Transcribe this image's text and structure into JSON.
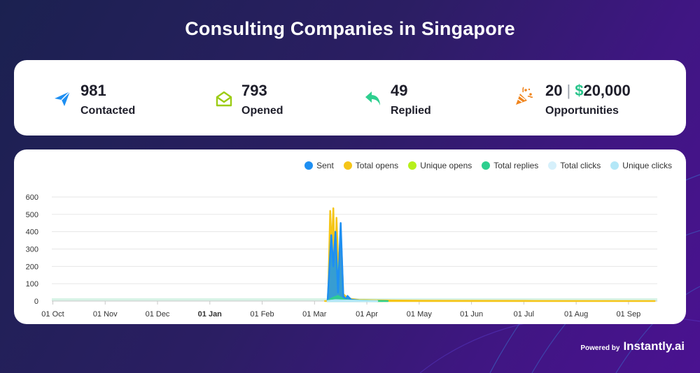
{
  "page": {
    "title": "Consulting Companies in Singapore"
  },
  "stats": [
    {
      "icon": "paper-plane-icon",
      "value": "981",
      "label": "Contacted",
      "color": "#1e8ff2"
    },
    {
      "icon": "envelope-open-icon",
      "value": "793",
      "label": "Opened",
      "color": "#9ccc15"
    },
    {
      "icon": "reply-arrow-icon",
      "value": "49",
      "label": "Replied",
      "color": "#2ecf8f"
    },
    {
      "icon": "party-popper-icon",
      "value": "20",
      "value_sep": "|",
      "value_currency": "$",
      "value_amount": "20,000",
      "label": "Opportunities",
      "color": "#f0851e"
    }
  ],
  "legend": [
    {
      "label": "Sent",
      "color": "#1e8ff2"
    },
    {
      "label": "Total opens",
      "color": "#f5c518"
    },
    {
      "label": "Unique opens",
      "color": "#b6f01a"
    },
    {
      "label": "Total replies",
      "color": "#2ecf8f"
    },
    {
      "label": "Total clicks",
      "color": "#d6f0fb"
    },
    {
      "label": "Unique clicks",
      "color": "#b3e7f7"
    }
  ],
  "chart_data": {
    "type": "area",
    "title": "",
    "xlabel": "",
    "ylabel": "",
    "ylim": [
      0,
      600
    ],
    "yticks": [
      0,
      100,
      200,
      300,
      400,
      500,
      600
    ],
    "xlim": [
      -0.02,
      11.55
    ],
    "x_ticks": [
      {
        "x": 0,
        "label": "01 Oct",
        "bold": false
      },
      {
        "x": 1,
        "label": "01 Nov",
        "bold": false
      },
      {
        "x": 2,
        "label": "01 Dec",
        "bold": false
      },
      {
        "x": 3,
        "label": "01 Jan",
        "bold": true
      },
      {
        "x": 4,
        "label": "01 Feb",
        "bold": false
      },
      {
        "x": 5,
        "label": "01 Mar",
        "bold": false
      },
      {
        "x": 6,
        "label": "01 Apr",
        "bold": false
      },
      {
        "x": 7,
        "label": "01 May",
        "bold": false
      },
      {
        "x": 8,
        "label": "01 Jun",
        "bold": false
      },
      {
        "x": 9,
        "label": "01 Jul",
        "bold": false
      },
      {
        "x": 10,
        "label": "01 Aug",
        "bold": false
      },
      {
        "x": 11,
        "label": "01 Sep",
        "bold": false
      }
    ],
    "series": [
      {
        "name": "Total opens",
        "color": "#f5c518",
        "points": [
          [
            5.2,
            0
          ],
          [
            5.26,
            0
          ],
          [
            5.3,
            520
          ],
          [
            5.33,
            300
          ],
          [
            5.36,
            535
          ],
          [
            5.39,
            120
          ],
          [
            5.42,
            480
          ],
          [
            5.46,
            150
          ],
          [
            5.5,
            420
          ],
          [
            5.55,
            40
          ],
          [
            5.62,
            20
          ],
          [
            5.7,
            12
          ],
          [
            5.85,
            6
          ],
          [
            6.2,
            4
          ],
          [
            7,
            2
          ],
          [
            9,
            1
          ],
          [
            11.5,
            0
          ]
        ]
      },
      {
        "name": "Unique opens",
        "color": "#b6f01a",
        "points": [
          [
            5.25,
            0
          ],
          [
            5.31,
            280
          ],
          [
            5.35,
            150
          ],
          [
            5.38,
            290
          ],
          [
            5.42,
            100
          ],
          [
            5.47,
            230
          ],
          [
            5.53,
            20
          ],
          [
            5.65,
            6
          ],
          [
            5.9,
            2
          ],
          [
            6.3,
            0
          ]
        ]
      },
      {
        "name": "Sent",
        "color": "#1e8ff2",
        "points": [
          [
            5.25,
            0
          ],
          [
            5.32,
            380
          ],
          [
            5.36,
            200
          ],
          [
            5.4,
            400
          ],
          [
            5.45,
            50
          ],
          [
            5.5,
            450
          ],
          [
            5.55,
            30
          ],
          [
            5.6,
            10
          ],
          [
            5.63,
            30
          ],
          [
            5.7,
            8
          ],
          [
            5.9,
            2
          ],
          [
            6.2,
            0
          ]
        ]
      },
      {
        "name": "Total replies",
        "color": "#2ecf8f",
        "points": [
          [
            5.25,
            0
          ],
          [
            5.35,
            18
          ],
          [
            5.45,
            30
          ],
          [
            5.55,
            10
          ],
          [
            5.65,
            4
          ],
          [
            6.0,
            2
          ],
          [
            6.4,
            0
          ]
        ]
      },
      {
        "name": "Total clicks",
        "color": "#d6f0fb",
        "points": [
          [
            5.25,
            0
          ],
          [
            5.4,
            5
          ],
          [
            5.6,
            3
          ],
          [
            6.2,
            0
          ]
        ]
      },
      {
        "name": "Unique clicks",
        "color": "#b3e7f7",
        "points": [
          [
            5.25,
            0
          ],
          [
            5.4,
            4
          ],
          [
            5.6,
            2
          ],
          [
            6.2,
            0
          ]
        ]
      }
    ]
  },
  "footer": {
    "powered_by": "Powered by",
    "brand": "Instantly.ai"
  }
}
